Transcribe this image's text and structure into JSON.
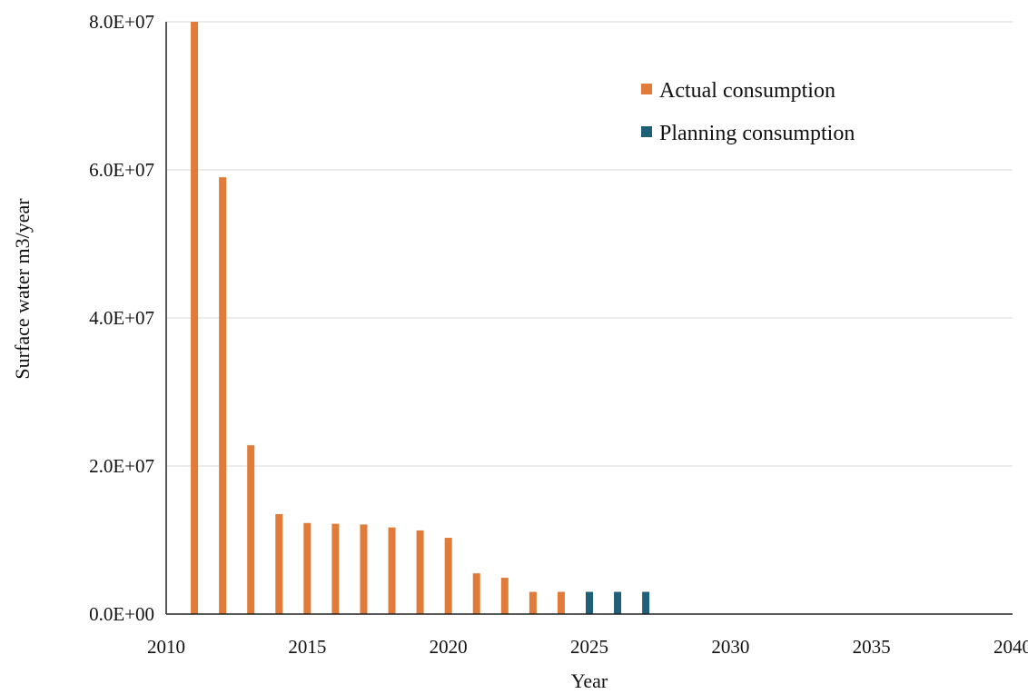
{
  "chart_data": {
    "type": "bar",
    "title": "",
    "xlabel": "Year",
    "ylabel": "Surface water m3/year",
    "xlim": [
      2010,
      2040
    ],
    "ylim": [
      0,
      80000000
    ],
    "x_ticks": [
      2010,
      2015,
      2020,
      2025,
      2030,
      2035,
      2040
    ],
    "x_tick_labels": [
      "2010",
      "2015",
      "2020",
      "2025",
      "2030",
      "2035",
      "2040"
    ],
    "y_ticks": [
      0,
      20000000,
      40000000,
      60000000,
      80000000
    ],
    "y_tick_labels": [
      "0.0E+00",
      "2.0E+07",
      "4.0E+07",
      "6.0E+07",
      "8.0E+07"
    ],
    "grid": "horizontal",
    "legend_position": "top-right",
    "series": [
      {
        "name": "Actual consumption",
        "color": "#E07B39",
        "x": [
          2011,
          2012,
          2013,
          2014,
          2015,
          2016,
          2017,
          2018,
          2019,
          2020,
          2021,
          2022,
          2023,
          2024
        ],
        "values": [
          80000000,
          59000000,
          22800000,
          13500000,
          12300000,
          12200000,
          12100000,
          11700000,
          11300000,
          10300000,
          5500000,
          4900000,
          3000000,
          3000000
        ]
      },
      {
        "name": "Planning consumption",
        "color": "#1F5F78",
        "x": [
          2025,
          2026,
          2027
        ],
        "values": [
          3000000,
          3000000,
          3000000
        ]
      }
    ]
  }
}
